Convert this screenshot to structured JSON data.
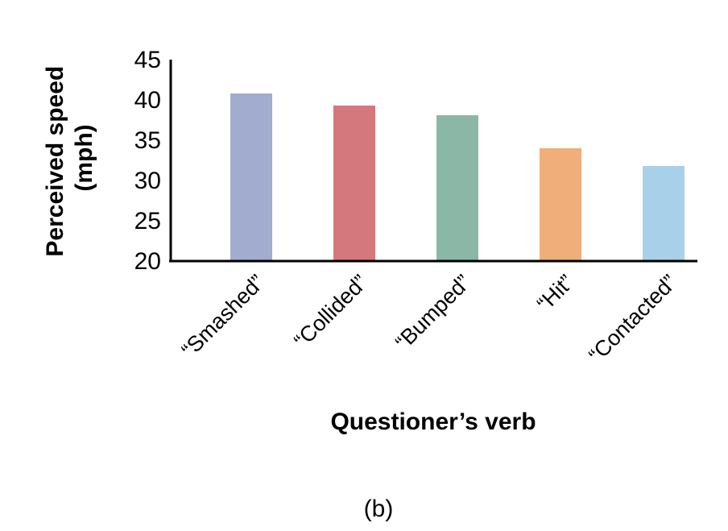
{
  "chart_data": {
    "type": "bar",
    "categories": [
      "“Smashed”",
      "“Collided”",
      "“Bumped”",
      "“Hit”",
      "“Contacted”"
    ],
    "values": [
      40.8,
      39.3,
      38.1,
      34.0,
      31.8
    ],
    "colors": [
      "#a2acce",
      "#d4787e",
      "#8bb8a6",
      "#f0ae7a",
      "#a9d0e9"
    ],
    "ylim": [
      20,
      45
    ],
    "yticks": [
      20,
      25,
      30,
      35,
      40,
      45
    ],
    "ylabel_line1": "Perceived speed",
    "ylabel_line2": "(mph)",
    "xlabel": "Questioner’s verb",
    "grid": false,
    "panel_label": "(b)"
  }
}
